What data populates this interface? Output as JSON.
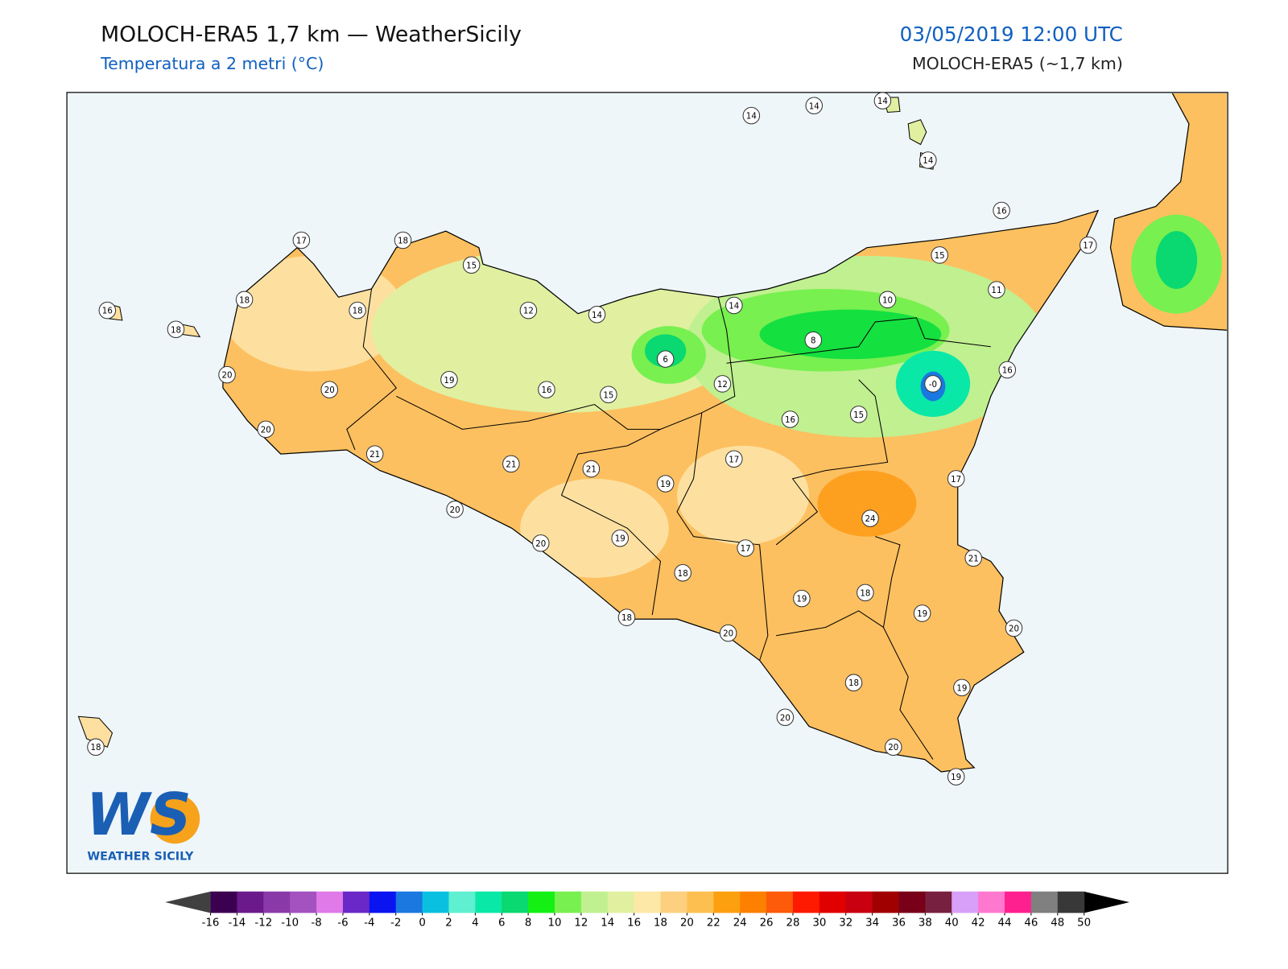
{
  "header": {
    "title": "MOLOCH-ERA5 1,7 km — WeatherSicily",
    "subtitle": "Temperatura a 2 metri (°C)",
    "date": "03/05/2019 12:00 UTC",
    "model": "MOLOCH-ERA5 (~1,7 km)"
  },
  "stations": [
    "14",
    "14",
    "14",
    "14",
    "16",
    "17",
    "15",
    "11",
    "10",
    "14",
    "8",
    "-0",
    "16",
    "17",
    "18",
    "15",
    "18",
    "18",
    "12",
    "14",
    "16",
    "18",
    "6",
    "12",
    "20",
    "20",
    "19",
    "16",
    "15",
    "16",
    "15",
    "20",
    "21",
    "21",
    "21",
    "17",
    "19",
    "17",
    "20",
    "24",
    "20",
    "19",
    "17",
    "21",
    "18",
    "19",
    "18",
    "19",
    "18",
    "20",
    "20",
    "18",
    "19",
    "20",
    "20",
    "19",
    "18"
  ],
  "logo": {
    "mark": "WS",
    "text": "WEATHER SICILY"
  },
  "colorbar": {
    "ticks": [
      -16,
      -14,
      -12,
      -10,
      -8,
      -6,
      -4,
      -2,
      0,
      2,
      4,
      6,
      8,
      10,
      12,
      14,
      16,
      18,
      20,
      22,
      24,
      26,
      28,
      30,
      32,
      34,
      36,
      38,
      40,
      42,
      44,
      46,
      48,
      50
    ],
    "colors": [
      "#3c0050",
      "#6a1a8a",
      "#8a3aa8",
      "#a352c0",
      "#e07ae8",
      "#6a28c8",
      "#0a14f0",
      "#1a78e0",
      "#0ac0e0",
      "#5ef0d0",
      "#0ae8a8",
      "#0ad870",
      "#14f014",
      "#78f050",
      "#c0f090",
      "#e0f0a0",
      "#fde8a8",
      "#fdd080",
      "#fdc050",
      "#fda010",
      "#fd8000",
      "#fd5a0a",
      "#fd1a00",
      "#e00000",
      "#c80010",
      "#a00000",
      "#780018",
      "#782040",
      "#d8a0f8",
      "#ff78d0",
      "#ff2090",
      "#808080",
      "#383838"
    ],
    "under": "#404040",
    "over": "#000000"
  }
}
